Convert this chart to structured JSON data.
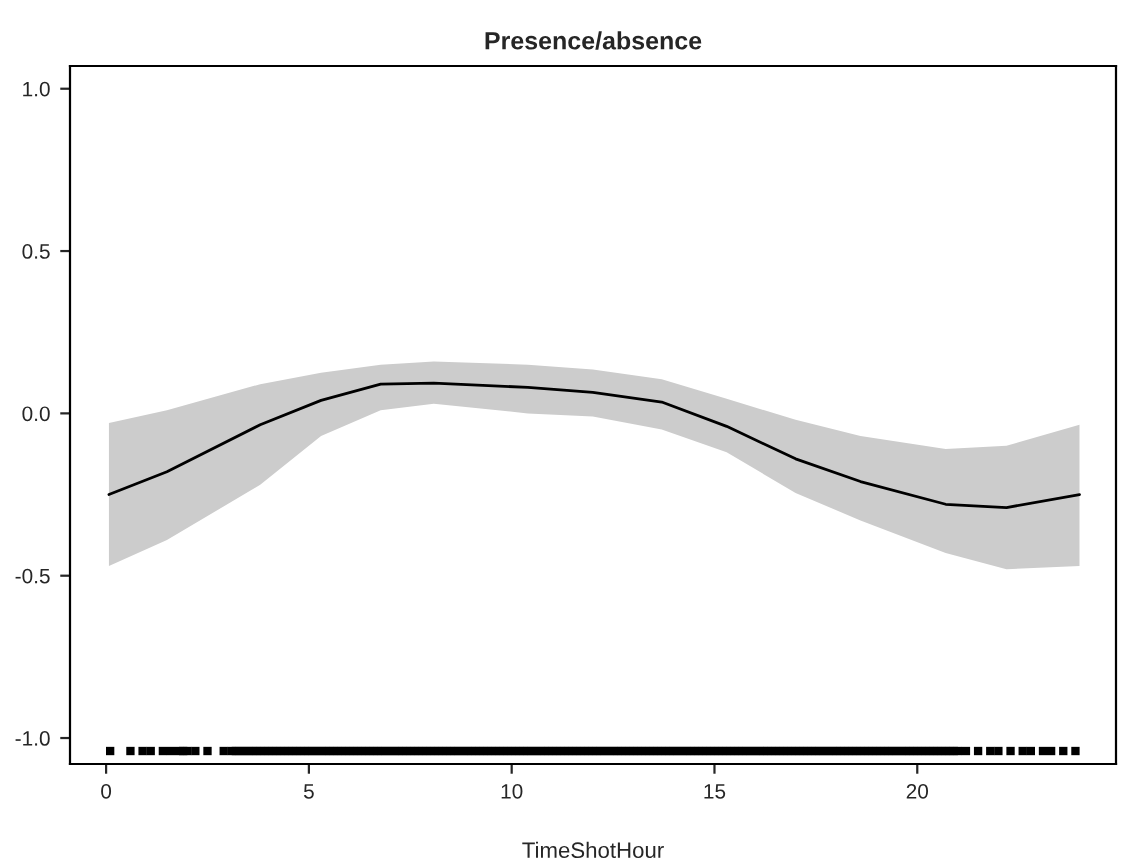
{
  "chart_data": {
    "type": "line",
    "title": "Presence/absence",
    "xlabel": "TimeShotHour",
    "xlim": [
      -0.89,
      24.9
    ],
    "ylim": [
      -1.08,
      1.07
    ],
    "xticks": [
      0,
      5,
      10,
      15,
      20
    ],
    "yticks": [
      {
        "value": -1,
        "label": "-1.0"
      },
      {
        "value": -0.5,
        "label": "-0.5"
      },
      {
        "value": 0,
        "label": "0.0"
      },
      {
        "value": 0.5,
        "label": "0.5"
      },
      {
        "value": 1,
        "label": "1.0"
      }
    ],
    "grid": false,
    "legend": false,
    "series": [
      {
        "color": "#000000",
        "x": [
          0.07,
          1.5,
          3.8,
          5.3,
          6.77,
          8.08,
          10.4,
          12.0,
          13.7,
          15.3,
          17.0,
          18.6,
          20.7,
          22.2,
          24.0
        ],
        "values": [
          -0.25,
          -0.18,
          -0.035,
          0.04,
          0.09,
          0.093,
          0.08,
          0.065,
          0.035,
          -0.04,
          -0.14,
          -0.21,
          -0.28,
          -0.29,
          -0.25
        ],
        "lower": [
          -0.47,
          -0.39,
          -0.22,
          -0.07,
          0.01,
          0.03,
          0.0,
          -0.01,
          -0.05,
          -0.12,
          -0.245,
          -0.33,
          -0.43,
          -0.48,
          -0.47
        ],
        "upper": [
          -0.03,
          0.01,
          0.09,
          0.125,
          0.15,
          0.16,
          0.15,
          0.135,
          0.105,
          0.045,
          -0.02,
          -0.07,
          -0.11,
          -0.1,
          -0.035
        ]
      },
      {
        "type": "scatter",
        "color": "#000000",
        "x": [
          0.1,
          0.6,
          0.9,
          1.1,
          1.4,
          1.6,
          1.8,
          1.9,
          2.0,
          2.2,
          2.5,
          2.9,
          3.1,
          3.2,
          3.3,
          3.4,
          3.5,
          3.6,
          3.7,
          3.8,
          3.9,
          4.0,
          4.1,
          4.2,
          4.3,
          4.4,
          4.5,
          4.6,
          4.7,
          4.8,
          4.9,
          5.0,
          5.1,
          5.2,
          5.3,
          5.4,
          5.5,
          5.6,
          5.7,
          5.8,
          5.9,
          6.0,
          6.1,
          6.2,
          6.3,
          6.4,
          6.5,
          6.6,
          6.7,
          6.8,
          6.9,
          7.0,
          7.1,
          7.2,
          7.3,
          7.4,
          7.5,
          7.6,
          7.7,
          7.8,
          7.9,
          8.0,
          8.1,
          8.2,
          8.3,
          8.4,
          8.5,
          8.6,
          8.7,
          8.8,
          8.9,
          9.0,
          9.1,
          9.2,
          9.3,
          9.4,
          9.5,
          9.6,
          9.7,
          9.8,
          9.9,
          10.0,
          10.1,
          10.2,
          10.3,
          10.4,
          10.5,
          10.6,
          10.7,
          10.8,
          10.9,
          11.0,
          11.1,
          11.2,
          11.3,
          11.4,
          11.5,
          11.6,
          11.7,
          11.8,
          11.9,
          12.0,
          12.1,
          12.2,
          12.3,
          12.4,
          12.5,
          12.6,
          12.7,
          12.8,
          12.9,
          13.0,
          13.1,
          13.2,
          13.3,
          13.4,
          13.5,
          13.6,
          13.7,
          13.8,
          13.9,
          14.0,
          14.1,
          14.2,
          14.3,
          14.4,
          14.5,
          14.6,
          14.7,
          14.8,
          14.9,
          15.0,
          15.1,
          15.2,
          15.3,
          15.4,
          15.5,
          15.6,
          15.7,
          15.8,
          15.9,
          16.0,
          16.1,
          16.2,
          16.3,
          16.4,
          16.5,
          16.6,
          16.7,
          16.8,
          16.9,
          17.0,
          17.1,
          17.2,
          17.3,
          17.4,
          17.5,
          17.6,
          17.7,
          17.8,
          17.9,
          18.0,
          18.1,
          18.2,
          18.3,
          18.4,
          18.5,
          18.6,
          18.7,
          18.8,
          18.9,
          19.0,
          19.1,
          19.2,
          19.3,
          19.4,
          19.5,
          19.6,
          19.7,
          19.8,
          19.9,
          20.0,
          20.1,
          20.2,
          20.3,
          20.4,
          20.5,
          20.6,
          20.7,
          20.8,
          20.9,
          21.0,
          21.2,
          21.5,
          21.8,
          22.0,
          22.3,
          22.6,
          22.8,
          23.1,
          23.3,
          23.6,
          23.9
        ],
        "marker": "square",
        "values": [
          -1.04,
          -1.04,
          -1.04,
          -1.04,
          -1.04,
          -1.04,
          -1.04,
          -1.04,
          -1.04,
          -1.04,
          -1.04,
          -1.04,
          -1.04,
          -1.04,
          -1.04,
          -1.04,
          -1.04,
          -1.04,
          -1.04,
          -1.04,
          -1.04,
          -1.04,
          -1.04,
          -1.04,
          -1.04,
          -1.04,
          -1.04,
          -1.04,
          -1.04,
          -1.04,
          -1.04,
          -1.04,
          -1.04,
          -1.04,
          -1.04,
          -1.04,
          -1.04,
          -1.04,
          -1.04,
          -1.04,
          -1.04,
          -1.04,
          -1.04,
          -1.04,
          -1.04,
          -1.04,
          -1.04,
          -1.04,
          -1.04,
          -1.04,
          -1.04,
          -1.04,
          -1.04,
          -1.04,
          -1.04,
          -1.04,
          -1.04,
          -1.04,
          -1.04,
          -1.04,
          -1.04,
          -1.04,
          -1.04,
          -1.04,
          -1.04,
          -1.04,
          -1.04,
          -1.04,
          -1.04,
          -1.04,
          -1.04,
          -1.04,
          -1.04,
          -1.04,
          -1.04,
          -1.04,
          -1.04,
          -1.04,
          -1.04,
          -1.04,
          -1.04,
          -1.04,
          -1.04,
          -1.04,
          -1.04,
          -1.04,
          -1.04,
          -1.04,
          -1.04,
          -1.04,
          -1.04,
          -1.04,
          -1.04,
          -1.04,
          -1.04,
          -1.04,
          -1.04,
          -1.04,
          -1.04,
          -1.04,
          -1.04,
          -1.04,
          -1.04,
          -1.04,
          -1.04,
          -1.04,
          -1.04,
          -1.04,
          -1.04,
          -1.04,
          -1.04,
          -1.04,
          -1.04,
          -1.04,
          -1.04,
          -1.04,
          -1.04,
          -1.04,
          -1.04,
          -1.04,
          -1.04,
          -1.04,
          -1.04,
          -1.04,
          -1.04,
          -1.04,
          -1.04,
          -1.04,
          -1.04,
          -1.04,
          -1.04,
          -1.04,
          -1.04,
          -1.04,
          -1.04,
          -1.04,
          -1.04,
          -1.04,
          -1.04,
          -1.04,
          -1.04,
          -1.04,
          -1.04,
          -1.04,
          -1.04,
          -1.04,
          -1.04,
          -1.04,
          -1.04,
          -1.04,
          -1.04,
          -1.04,
          -1.04,
          -1.04,
          -1.04,
          -1.04,
          -1.04,
          -1.04,
          -1.04,
          -1.04,
          -1.04,
          -1.04,
          -1.04,
          -1.04,
          -1.04,
          -1.04,
          -1.04,
          -1.04,
          -1.04,
          -1.04,
          -1.04,
          -1.04,
          -1.04,
          -1.04,
          -1.04,
          -1.04,
          -1.04,
          -1.04,
          -1.04,
          -1.04,
          -1.04,
          -1.04,
          -1.04,
          -1.04,
          -1.04,
          -1.04,
          -1.04,
          -1.04,
          -1.04,
          -1.04,
          -1.04,
          -1.04,
          -1.04,
          -1.04,
          -1.04,
          -1.04,
          -1.04,
          -1.04,
          -1.04,
          -1.04,
          -1.04,
          -1.04,
          -1.04
        ]
      }
    ]
  }
}
